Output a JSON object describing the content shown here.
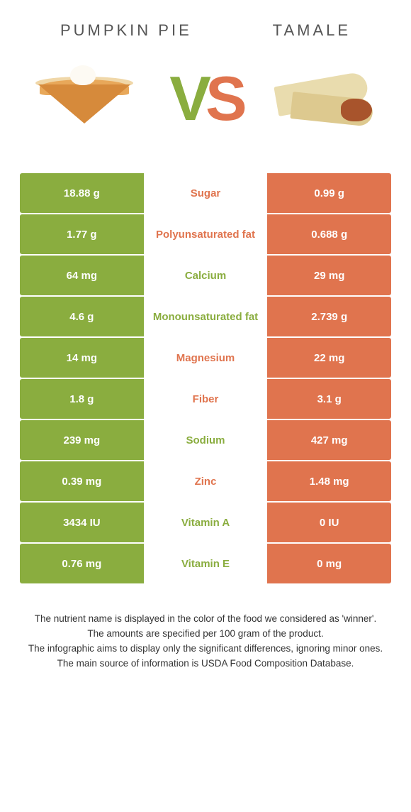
{
  "colors": {
    "left": "#8aad3f",
    "right": "#e0744e",
    "left_label": "#8aad3f",
    "right_label": "#e0744e",
    "background": "#ffffff"
  },
  "food_left": {
    "title": "PUMPKIN PIE"
  },
  "food_right": {
    "title": "TAMALE"
  },
  "vs": {
    "v": "V",
    "s": "S"
  },
  "rows": [
    {
      "left": "18.88 g",
      "label": "Sugar",
      "right": "0.99 g",
      "winner": "right"
    },
    {
      "left": "1.77 g",
      "label": "Polyunsaturated fat",
      "right": "0.688 g",
      "winner": "right"
    },
    {
      "left": "64 mg",
      "label": "Calcium",
      "right": "29 mg",
      "winner": "left"
    },
    {
      "left": "4.6 g",
      "label": "Monounsaturated fat",
      "right": "2.739 g",
      "winner": "left"
    },
    {
      "left": "14 mg",
      "label": "Magnesium",
      "right": "22 mg",
      "winner": "right"
    },
    {
      "left": "1.8 g",
      "label": "Fiber",
      "right": "3.1 g",
      "winner": "right"
    },
    {
      "left": "239 mg",
      "label": "Sodium",
      "right": "427 mg",
      "winner": "left"
    },
    {
      "left": "0.39 mg",
      "label": "Zinc",
      "right": "1.48 mg",
      "winner": "right"
    },
    {
      "left": "3434 IU",
      "label": "Vitamin A",
      "right": "0 IU",
      "winner": "left"
    },
    {
      "left": "0.76 mg",
      "label": "Vitamin E",
      "right": "0 mg",
      "winner": "left"
    }
  ],
  "notes": {
    "l1": "The nutrient name is displayed in the color of the food we considered as 'winner'.",
    "l2": "The amounts are specified per 100 gram of the product.",
    "l3": "The infographic aims to display only the significant differences, ignoring minor ones.",
    "l4": "The main source of information is USDA Food Composition Database."
  }
}
